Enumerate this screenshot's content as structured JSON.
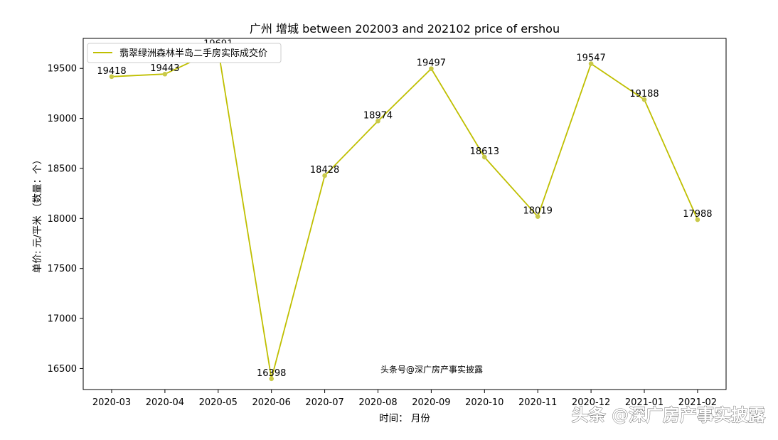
{
  "chart_data": {
    "type": "line",
    "title": "广州 增城 between 202003 and 202102 price of ershou",
    "xlabel": "时间： 月份",
    "ylabel": "单价: 元/平米      （数量：个）",
    "categories": [
      "2020-03",
      "2020-04",
      "2020-05",
      "2020-06",
      "2020-07",
      "2020-08",
      "2020-09",
      "2020-10",
      "2020-11",
      "2020-12",
      "2021-01",
      "2021-02"
    ],
    "series": [
      {
        "name": "翡翠绿洲森林半岛二手房实际成交价",
        "values": [
          19418,
          19443,
          19691,
          16398,
          18428,
          18974,
          19497,
          18613,
          18019,
          19547,
          19188,
          17988
        ],
        "data_labels": [
          "19418",
          "19443",
          "19691",
          "16398",
          "18428",
          "18974",
          "19497",
          "18613",
          "18019",
          "19547",
          "19188",
          "17988"
        ]
      }
    ],
    "ylim": [
      16290,
      19800
    ],
    "yticks": [
      16500,
      17000,
      17500,
      18000,
      18500,
      19000,
      19500
    ],
    "grid": false,
    "legend_position": "top-left",
    "colors": {
      "line": "#bfbf00",
      "marker": "#c9c94a",
      "axis": "#000000"
    }
  },
  "watermark": {
    "inline_text": "头条号@深广房产事实披露",
    "corner_text": "头条 @深广房产事实披露"
  }
}
